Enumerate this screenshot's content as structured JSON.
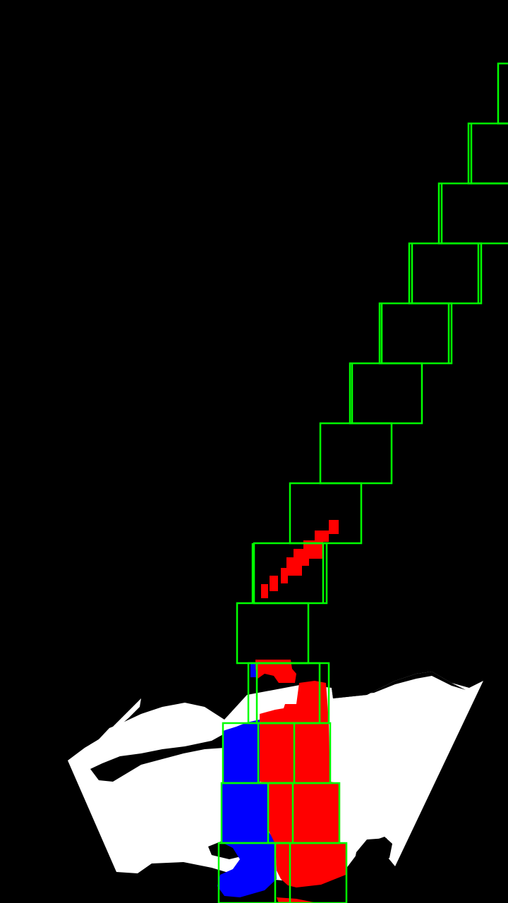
{
  "image": {
    "kind": "binary lane-detection debug visualization",
    "background_color": "#000000",
    "road_mask_color": "#ffffff",
    "left_lane_pixels_color": "#0000ff",
    "right_lane_pixels_color": "#ff0000",
    "search_window_color": "#00ff00"
  },
  "search_windows": {
    "left_lane_window_count": 4,
    "right_lane_window_count": 15
  }
}
